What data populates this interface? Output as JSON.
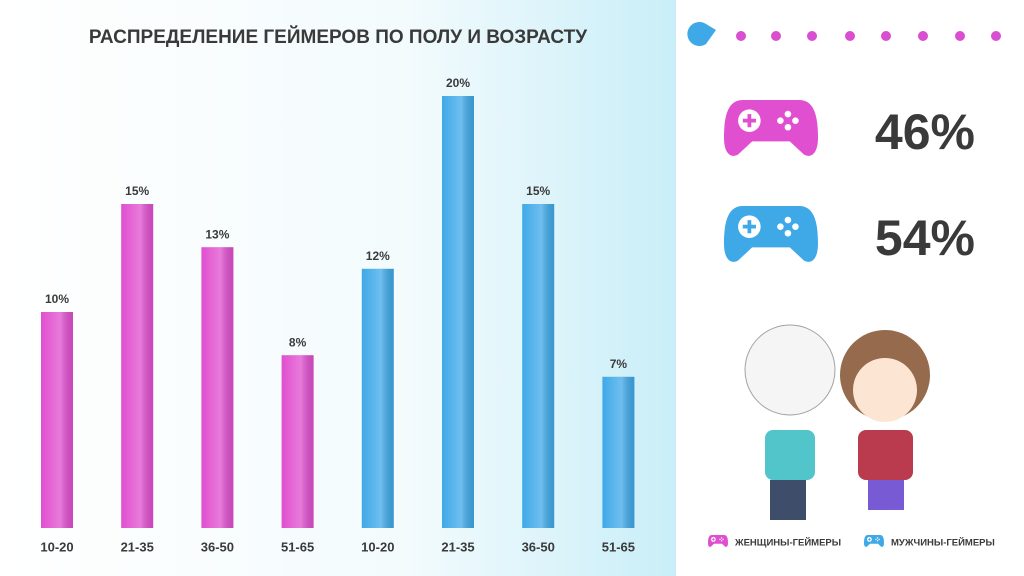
{
  "chart_data": {
    "type": "bar",
    "title": "РАСПРЕДЕЛЕНИЕ ГЕЙМЕРОВ ПО ПОЛУ И ВОЗРАСТУ",
    "series": [
      {
        "name": "ЖЕНЩИНЫ-ГЕЙМЕРЫ",
        "color": "#e04fcf",
        "categories": [
          "10-20",
          "21-35",
          "36-50",
          "51-65"
        ],
        "values": [
          10,
          15,
          13,
          8
        ],
        "value_labels": [
          "10%",
          "15%",
          "13%",
          "8%"
        ],
        "share": 46,
        "share_label": "46%"
      },
      {
        "name": "МУЖЧИНЫ-ГЕЙМЕРЫ",
        "color": "#3fa9e8",
        "categories": [
          "10-20",
          "21-35",
          "36-50",
          "51-65"
        ],
        "values": [
          12,
          20,
          15,
          7
        ],
        "value_labels": [
          "12%",
          "20%",
          "15%",
          "7%"
        ],
        "share": 54,
        "share_label": "54%"
      }
    ]
  }
}
